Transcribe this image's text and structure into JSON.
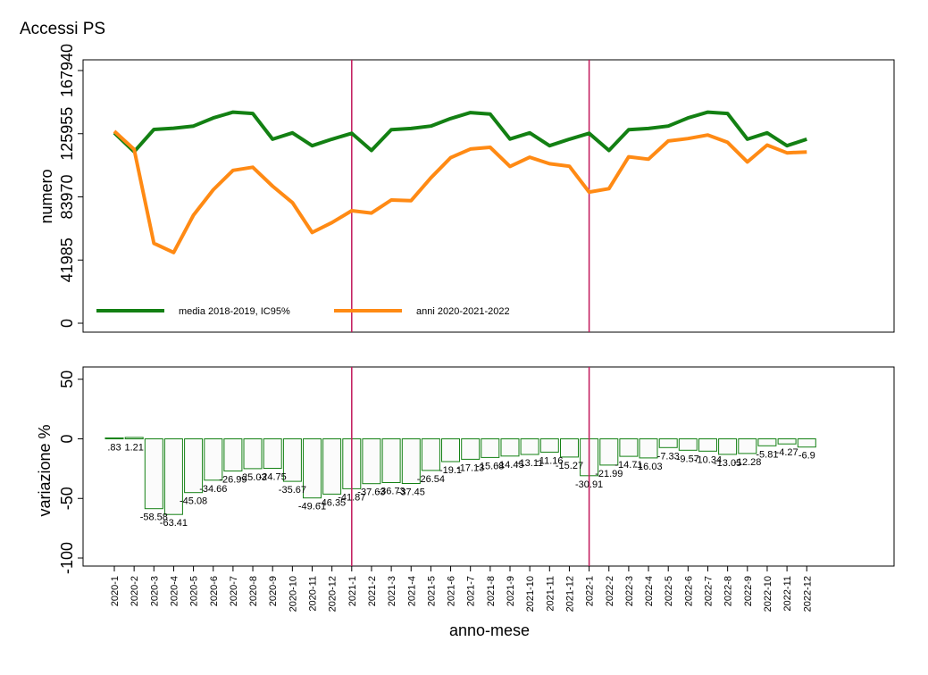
{
  "chart_data": [
    {
      "type": "line",
      "title": "Accessi PS",
      "ylabel": "numero",
      "ylim": [
        0,
        167940
      ],
      "yticks": [
        "0",
        "41985",
        "83970",
        "125955",
        "167940"
      ],
      "legend_position": "bottom-left",
      "colors": {
        "media": "#138013",
        "anni": "#ff8a14",
        "vline": "#c2185b"
      },
      "vlines_at": [
        "2021-1",
        "2022-1"
      ],
      "x": [
        "2020-1",
        "2020-2",
        "2020-3",
        "2020-4",
        "2020-5",
        "2020-6",
        "2020-7",
        "2020-8",
        "2020-9",
        "2020-10",
        "2020-11",
        "2020-12",
        "2021-1",
        "2021-2",
        "2021-3",
        "2021-4",
        "2021-5",
        "2021-6",
        "2021-7",
        "2021-8",
        "2021-9",
        "2021-10",
        "2021-11",
        "2021-12",
        "2022-1",
        "2022-2",
        "2022-3",
        "2022-4",
        "2022-5",
        "2022-6",
        "2022-7",
        "2022-8",
        "2022-9",
        "2022-10",
        "2022-11",
        "2022-12"
      ],
      "series": [
        {
          "name": "media 2018-2019, IC95%",
          "values": [
            126500,
            114000,
            128800,
            129600,
            131000,
            136400,
            140300,
            139400,
            122300,
            126500,
            118000,
            122300,
            126200,
            114800,
            128600,
            129400,
            131000,
            136000,
            140000,
            139000,
            122400,
            126500,
            118000,
            122300,
            126200,
            114800,
            128600,
            129400,
            131000,
            136400,
            140300,
            139400,
            122300,
            126500,
            118000,
            122300
          ]
        },
        {
          "name": "anni 2020-2021-2022",
          "values": [
            127600,
            115500,
            53100,
            47000,
            71800,
            88700,
            101600,
            103700,
            91100,
            80200,
            60300,
            66900,
            74800,
            73200,
            81900,
            81500,
            96600,
            110000,
            115800,
            116900,
            104200,
            110300,
            106000,
            104300,
            87200,
            89400,
            110600,
            109000,
            121100,
            122700,
            125100,
            120200,
            107200,
            118400,
            113200,
            113800
          ]
        }
      ]
    },
    {
      "type": "bar",
      "ylabel": "variazione %",
      "xlabel": "anno-mese",
      "ylim": [
        -100,
        50
      ],
      "yticks": [
        "-100",
        "-50",
        "0",
        "50"
      ],
      "categories": [
        "2020-1",
        "2020-2",
        "2020-3",
        "2020-4",
        "2020-5",
        "2020-6",
        "2020-7",
        "2020-8",
        "2020-9",
        "2020-10",
        "2020-11",
        "2020-12",
        "2021-1",
        "2021-2",
        "2021-3",
        "2021-4",
        "2021-5",
        "2021-6",
        "2021-7",
        "2021-8",
        "2021-9",
        "2021-10",
        "2021-11",
        "2021-12",
        "2022-1",
        "2022-2",
        "2022-3",
        "2022-4",
        "2022-5",
        "2022-6",
        "2022-7",
        "2022-8",
        "2022-9",
        "2022-10",
        "2022-11",
        "2022-12"
      ],
      "values": [
        0.83,
        1.21,
        -58.58,
        -63.41,
        -45.08,
        -34.66,
        -26.99,
        -25.03,
        -24.75,
        -35.67,
        -49.61,
        -46.35,
        -41.87,
        -37.63,
        -36.73,
        -37.45,
        -26.54,
        -19.1,
        -17.13,
        -15.68,
        -14.45,
        -13.11,
        -11.16,
        -15.27,
        -30.91,
        -21.99,
        -14.71,
        -16.03,
        -7.33,
        -9.57,
        -10.34,
        -13.05,
        -12.28,
        -5.81,
        -4.27,
        -6.9
      ],
      "labels": [
        ".83",
        "1.21",
        "-58.58",
        "-63.41",
        "-45.08",
        "-34.66",
        "-26.99",
        "-25.03",
        "-24.75",
        "-35.67",
        "-49.61",
        "-46.35",
        "-41.87",
        "-37.63",
        "-36.73",
        "-37.45",
        "-26.54",
        "-19.1",
        "-17.13",
        "-15.68",
        "-14.45",
        "-13.11",
        "-11.16",
        "-15.27",
        "-30.91",
        "-21.99",
        "-14.71",
        "-16.03",
        "-7.33",
        "-9.57",
        "-10.34",
        "-13.05",
        "-12.28",
        "-5.81",
        "-4.27",
        "-6.9"
      ],
      "bar_color": "#138013",
      "vlines_at": [
        "2021-1",
        "2022-1"
      ]
    }
  ]
}
